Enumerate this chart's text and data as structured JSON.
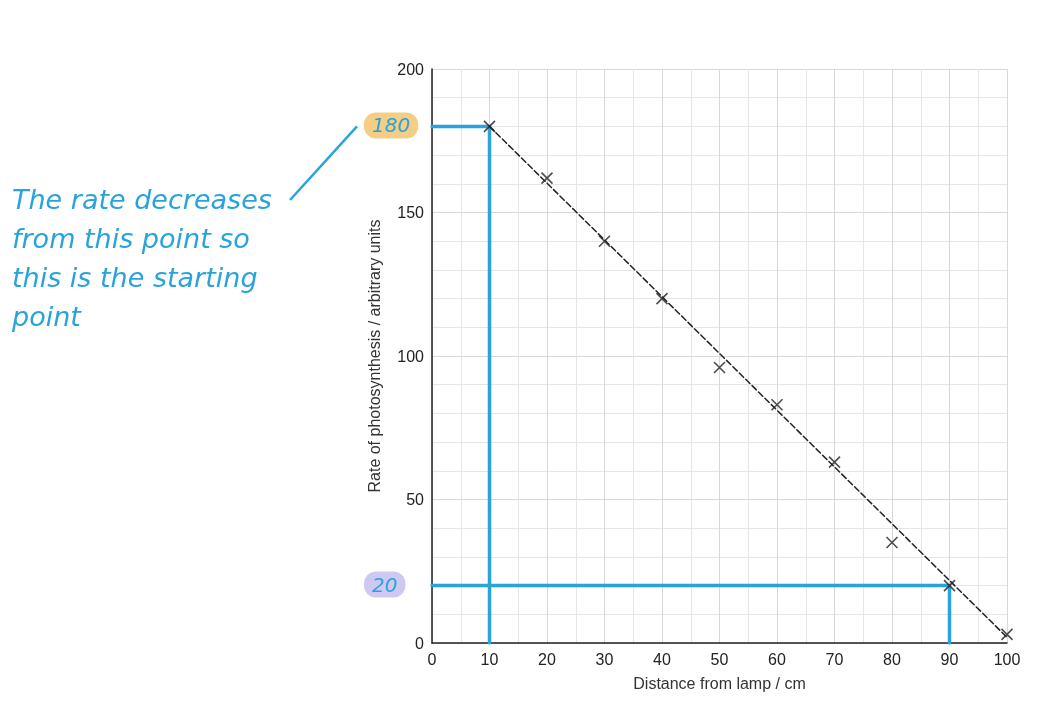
{
  "chart_data": {
    "type": "scatter",
    "xlabel": "Distance from lamp / cm",
    "ylabel": "Rate of photosynthesis / arbitrary units",
    "x": [
      10,
      20,
      30,
      40,
      50,
      60,
      70,
      80,
      90,
      100
    ],
    "series": [
      {
        "color": "#222222",
        "marker": "cross",
        "values": [
          180,
          162,
          140,
          120,
          96,
          83,
          63,
          35,
          20,
          3
        ]
      },
      {
        "type": "line",
        "color": "#222222",
        "line_style": "dashed",
        "marker": "none",
        "x": [
          10,
          100
        ],
        "values": [
          180,
          2
        ]
      },
      {
        "type": "line",
        "color": "#29a3dc",
        "line_style": "solid",
        "marker": "none",
        "x": [
          0,
          10,
          10
        ],
        "values": [
          180,
          180,
          0
        ]
      },
      {
        "type": "line",
        "color": "#29a3dc",
        "line_style": "solid",
        "marker": "none",
        "x": [
          0,
          90,
          90
        ],
        "values": [
          20,
          20,
          0
        ]
      }
    ],
    "xlim": [
      0,
      100
    ],
    "xticks": [
      0,
      10,
      20,
      30,
      40,
      50,
      60,
      70,
      80,
      90,
      100
    ],
    "ylim": [
      0,
      200
    ],
    "yticks": [
      0,
      50,
      100,
      150,
      200
    ],
    "grid": true,
    "annotations": [
      "The rate decreases from this point so this is the starting point",
      {
        "text": "180",
        "x": 0,
        "y": 180
      },
      {
        "text": "20",
        "x": 0,
        "y": 20
      }
    ]
  }
}
